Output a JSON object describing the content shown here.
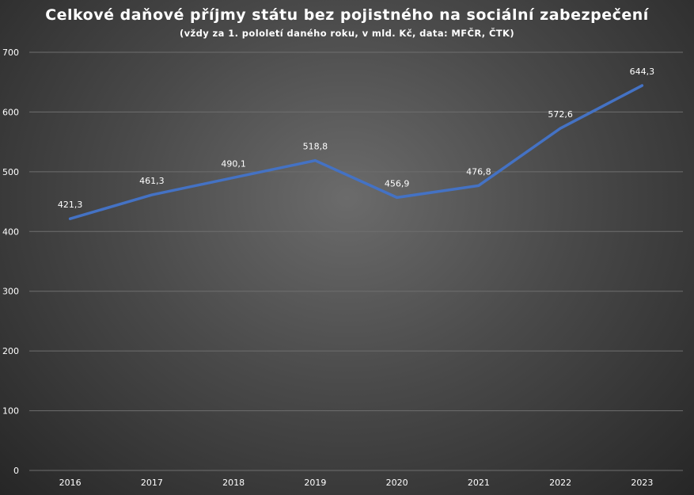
{
  "chart_data": {
    "type": "line",
    "title": "Celkové daňové příjmy státu bez pojistného na sociální zabezpečení",
    "subtitle": "(vždy za 1. pololetí daného roku, v mld. Kč, data: MFČR, ČTK)",
    "xlabel": "",
    "ylabel": "",
    "categories": [
      "2016",
      "2017",
      "2018",
      "2019",
      "2020",
      "2021",
      "2022",
      "2023"
    ],
    "series": [
      {
        "name": "",
        "values": [
          421.3,
          461.3,
          490.1,
          518.8,
          456.9,
          476.8,
          572.6,
          644.3
        ],
        "value_labels": [
          "421,3",
          "461,3",
          "490,1",
          "518,8",
          "456,9",
          "476,8",
          "572,6",
          "644,3"
        ],
        "color": "#4472C4"
      }
    ],
    "ylim": [
      0,
      700
    ],
    "yticks": [
      0,
      100,
      200,
      300,
      400,
      500,
      600,
      700
    ],
    "ytick_labels": [
      "0",
      "100",
      "200",
      "300",
      "400",
      "500",
      "600",
      "700"
    ],
    "grid": true,
    "legend": "none",
    "colors": {
      "line": "#4472C4",
      "gridline": "#6e6e6e",
      "text": "#ffffff"
    }
  }
}
